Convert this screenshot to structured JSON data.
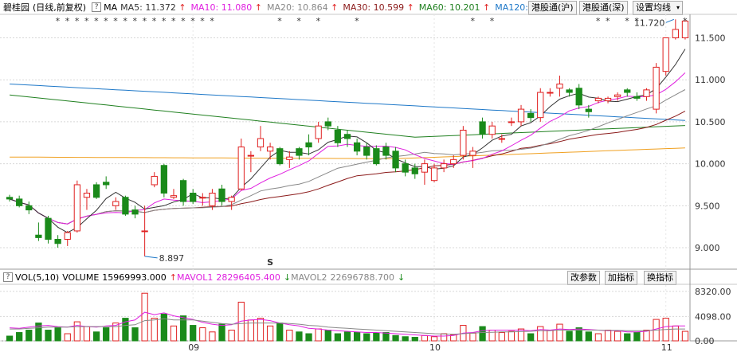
{
  "header": {
    "stock_name": "碧桂园",
    "mode": "(日线,前复权)",
    "ma_label": "MA",
    "ma_values": [
      {
        "name": "MA5",
        "value": "11.372",
        "color": "#333333"
      },
      {
        "name": "MA10",
        "value": "11.080",
        "color": "#e020e0"
      },
      {
        "name": "MA20",
        "value": "10.864",
        "color": "#888888"
      },
      {
        "name": "MA30",
        "value": "10.599",
        "color": "#8b1a1a"
      },
      {
        "name": "MA60",
        "value": "10.201",
        "color": "#208020"
      },
      {
        "name": "MA120",
        "value": "",
        "color": "#1e78c8"
      }
    ],
    "buttons": [
      "港股通(沪)",
      "港股通(深)",
      "设置均线"
    ]
  },
  "volume": {
    "label": "VOL(5,10)",
    "volume_name": "VOLUME",
    "volume_value": "15969993.000",
    "mavol1_name": "MAVOL1",
    "mavol1_value": "28296405.400",
    "mavol2_name": "MAVOL2",
    "mavol2_value": "22696788.700",
    "buttons": [
      "改参数",
      "加指标",
      "换指标"
    ]
  },
  "colors": {
    "up": "#e02020",
    "down": "#1a8a1a",
    "ma5": "#333333",
    "ma10": "#e020e0",
    "ma20": "#888888",
    "ma30": "#8b1a1a",
    "ma60": "#208020",
    "ma120": "#1e78c8",
    "ma250": "#f0a020"
  },
  "chart_data": {
    "type": "candlestick",
    "y_ticks": [
      9.0,
      9.5,
      10.0,
      10.5,
      11.0,
      11.5
    ],
    "y_tick_labels": [
      "9.000",
      "9.500",
      "10.000",
      "10.500",
      "11.000",
      "11.500"
    ],
    "ylim": [
      8.82,
      11.78
    ],
    "x_labels": [
      "09",
      "10",
      "11"
    ],
    "x_label_index": [
      19,
      44,
      68
    ],
    "annotations": [
      {
        "text": "8.897",
        "index": 14,
        "value": 8.897
      },
      {
        "text": "11.720",
        "index": 69,
        "value": 11.72
      }
    ],
    "marker": "S",
    "candles": [
      [
        9.6,
        9.63,
        9.55,
        9.58
      ],
      [
        9.58,
        9.62,
        9.48,
        9.5
      ],
      [
        9.5,
        9.55,
        9.4,
        9.45
      ],
      [
        9.15,
        9.3,
        9.08,
        9.12
      ],
      [
        9.35,
        9.38,
        9.05,
        9.1
      ],
      [
        9.1,
        9.15,
        9.0,
        9.05
      ],
      [
        9.1,
        9.2,
        9.02,
        9.18
      ],
      [
        9.2,
        9.8,
        9.18,
        9.75
      ],
      [
        9.6,
        9.7,
        9.45,
        9.65
      ],
      [
        9.75,
        9.78,
        9.58,
        9.6
      ],
      [
        9.78,
        9.85,
        9.7,
        9.75
      ],
      [
        9.5,
        9.6,
        9.45,
        9.55
      ],
      [
        9.6,
        9.62,
        9.38,
        9.4
      ],
      [
        9.45,
        9.5,
        9.35,
        9.4
      ],
      [
        9.2,
        9.5,
        8.897,
        9.2
      ],
      [
        9.75,
        9.9,
        9.72,
        9.85
      ],
      [
        9.98,
        10.0,
        9.6,
        9.65
      ],
      [
        9.6,
        9.7,
        9.58,
        9.62
      ],
      [
        9.8,
        9.82,
        9.5,
        9.55
      ],
      [
        9.65,
        9.7,
        9.52,
        9.55
      ],
      [
        9.6,
        9.65,
        9.5,
        9.6
      ],
      [
        9.5,
        9.7,
        9.45,
        9.65
      ],
      [
        9.7,
        9.75,
        9.5,
        9.55
      ],
      [
        9.55,
        9.62,
        9.45,
        9.6
      ],
      [
        9.7,
        10.3,
        9.68,
        10.2
      ],
      [
        10.1,
        10.15,
        9.9,
        10.1
      ],
      [
        10.2,
        10.45,
        10.15,
        10.3
      ],
      [
        10.15,
        10.25,
        10.05,
        10.2
      ],
      [
        10.18,
        10.2,
        9.98,
        10.0
      ],
      [
        10.05,
        10.15,
        9.95,
        10.08
      ],
      [
        10.18,
        10.2,
        10.05,
        10.1
      ],
      [
        10.25,
        10.35,
        10.1,
        10.2
      ],
      [
        10.3,
        10.5,
        10.25,
        10.45
      ],
      [
        10.5,
        10.55,
        10.4,
        10.45
      ],
      [
        10.4,
        10.45,
        10.2,
        10.25
      ],
      [
        10.35,
        10.4,
        10.2,
        10.3
      ],
      [
        10.25,
        10.3,
        10.1,
        10.15
      ],
      [
        10.2,
        10.25,
        10.05,
        10.1
      ],
      [
        10.18,
        10.22,
        9.98,
        10.0
      ],
      [
        10.2,
        10.25,
        10.05,
        10.1
      ],
      [
        10.15,
        10.2,
        9.9,
        9.95
      ],
      [
        10.0,
        10.05,
        9.85,
        9.9
      ],
      [
        9.95,
        10.0,
        9.82,
        9.88
      ],
      [
        9.9,
        10.05,
        9.75,
        10.0
      ],
      [
        9.8,
        10.0,
        9.78,
        9.95
      ],
      [
        9.95,
        10.05,
        9.9,
        10.0
      ],
      [
        10.0,
        10.1,
        9.95,
        10.05
      ],
      [
        10.1,
        10.45,
        10.05,
        10.4
      ],
      [
        10.1,
        10.2,
        9.95,
        10.15
      ],
      [
        10.5,
        10.55,
        10.3,
        10.35
      ],
      [
        10.35,
        10.5,
        10.3,
        10.45
      ],
      [
        10.3,
        10.35,
        10.25,
        10.3
      ],
      [
        10.5,
        10.55,
        10.45,
        10.5
      ],
      [
        10.5,
        10.7,
        10.45,
        10.65
      ],
      [
        10.6,
        10.65,
        10.5,
        10.55
      ],
      [
        10.55,
        10.9,
        10.5,
        10.85
      ],
      [
        10.85,
        10.9,
        10.8,
        10.85
      ],
      [
        10.9,
        11.05,
        10.8,
        10.95
      ],
      [
        10.88,
        10.9,
        10.8,
        10.85
      ],
      [
        10.9,
        10.95,
        10.65,
        10.7
      ],
      [
        10.65,
        10.7,
        10.55,
        10.62
      ],
      [
        10.75,
        10.8,
        10.72,
        10.78
      ],
      [
        10.75,
        10.8,
        10.72,
        10.78
      ],
      [
        10.8,
        10.85,
        10.75,
        10.82
      ],
      [
        10.88,
        10.9,
        10.8,
        10.85
      ],
      [
        10.8,
        10.85,
        10.75,
        10.78
      ],
      [
        10.8,
        10.9,
        10.75,
        10.88
      ],
      [
        10.65,
        11.2,
        10.6,
        11.15
      ],
      [
        11.1,
        11.5,
        11.05,
        11.5
      ],
      [
        11.5,
        11.72,
        11.48,
        11.6
      ],
      [
        11.5,
        11.72,
        11.48,
        11.7
      ]
    ],
    "volume": {
      "ylim": [
        0,
        9500
      ],
      "y_ticks": [
        0,
        4098,
        8320
      ],
      "y_tick_labels": [
        "0.00",
        "4098.00",
        "8320.00"
      ],
      "values": [
        800,
        1400,
        1800,
        3000,
        1800,
        2200,
        1200,
        3200,
        2400,
        1500,
        2200,
        3000,
        3800,
        2200,
        8000,
        3800,
        4500,
        2500,
        4200,
        2600,
        2200,
        1500,
        2800,
        1800,
        6500,
        3500,
        3800,
        2500,
        3000,
        1800,
        1500,
        1200,
        2000,
        1800,
        1200,
        1500,
        1400,
        1200,
        1300,
        1400,
        900,
        700,
        600,
        900,
        700,
        1200,
        1000,
        2600,
        1300,
        2400,
        1800,
        1400,
        1600,
        2000,
        1200,
        2400,
        1800,
        2800,
        1600,
        2200,
        1500,
        1200,
        1800,
        1600,
        1200,
        1400,
        1800,
        3600,
        3800,
        2500,
        1600
      ],
      "mavol1": [
        2200,
        2100,
        2300,
        2500,
        2600,
        2400,
        2300,
        2600,
        2400,
        2300,
        2500,
        2600,
        3200,
        3500,
        4800,
        4400,
        4700,
        4200,
        3900,
        3600,
        3100,
        2800,
        2600,
        2700,
        3300,
        3500,
        3600,
        3400,
        3000,
        2700,
        2500,
        2100,
        2000,
        1800,
        1700,
        1600,
        1500,
        1400,
        1400,
        1300,
        1200,
        1100,
        1000,
        900,
        800,
        800,
        900,
        1300,
        1400,
        1700,
        1800,
        1800,
        1800,
        1800,
        1700,
        1900,
        1800,
        2000,
        1900,
        2000,
        1900,
        1800,
        1700,
        1700,
        1500,
        1500,
        1600,
        2000,
        2400,
        2500,
        2500
      ],
      "mavol2": [
        2000,
        2000,
        2100,
        2200,
        2300,
        2300,
        2300,
        2400,
        2400,
        2400,
        2400,
        2400,
        2600,
        2700,
        3400,
        3500,
        3700,
        3500,
        3500,
        3500,
        3300,
        3100,
        2900,
        2800,
        2900,
        3000,
        3000,
        3000,
        3000,
        2900,
        2800,
        2600,
        2500,
        2300,
        2200,
        2100,
        2000,
        1900,
        1800,
        1700,
        1600,
        1500,
        1400,
        1300,
        1200,
        1150,
        1100,
        1200,
        1300,
        1400,
        1450,
        1500,
        1500,
        1550,
        1600,
        1700,
        1700,
        1800,
        1800,
        1800,
        1800,
        1800,
        1750,
        1750,
        1700,
        1700,
        1700,
        1800,
        1900,
        2000,
        2000
      ]
    }
  }
}
